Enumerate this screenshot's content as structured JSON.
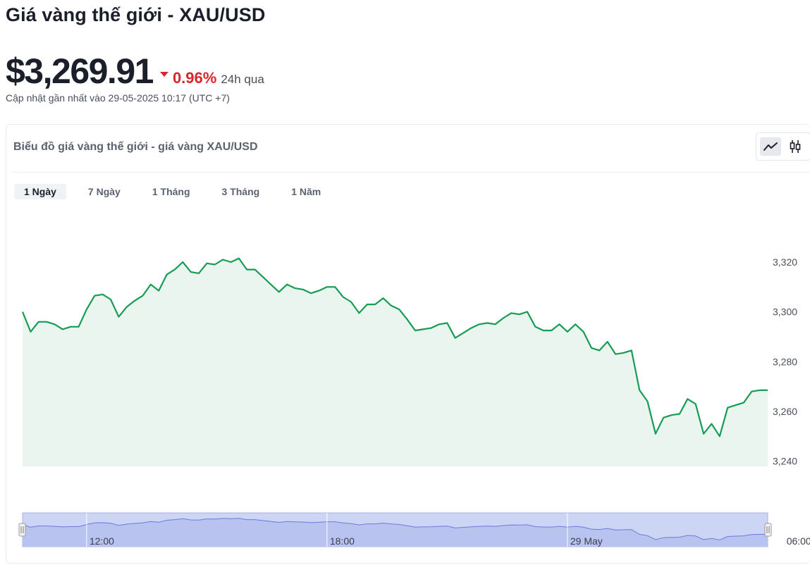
{
  "header": {
    "title": "Giá vàng thế giới - XAU/USD",
    "price": "$3,269.91",
    "change_pct": "0.96%",
    "change_period": "24h qua",
    "updated": "Cập nhật gần nhất vào 29-05-2025 10:17 (UTC +7)"
  },
  "card": {
    "title": "Biểu đồ giá vàng thế giới - giá vàng XAU/USD",
    "view_modes": [
      {
        "icon": "line-chart-icon",
        "active": true
      },
      {
        "icon": "candlestick-icon",
        "active": false
      }
    ],
    "ranges": [
      {
        "label": "1 Ngày",
        "active": true
      },
      {
        "label": "7 Ngày",
        "active": false
      },
      {
        "label": "1 Tháng",
        "active": false
      },
      {
        "label": "3 Tháng",
        "active": false
      },
      {
        "label": "1 Năm",
        "active": false
      }
    ]
  },
  "colors": {
    "line": "#169c54",
    "fill": "#eaf5ef",
    "negative": "#d9262e",
    "navigator_fill": "#cdd5f5",
    "navigator_line": "#6c7bd8"
  },
  "chart_data": {
    "type": "area",
    "title": "",
    "xlabel": "",
    "ylabel": "",
    "ylim": [
      3237,
      3330
    ],
    "yticks": [
      3240,
      3260,
      3280,
      3300,
      3320
    ],
    "ytick_labels": [
      "3,240",
      "3,260",
      "3,280",
      "3,300",
      "3,320"
    ],
    "grid": false,
    "navigator_ticks": [
      {
        "label": "12:00",
        "index": 8
      },
      {
        "label": "18:00",
        "index": 38
      },
      {
        "label": "29 May",
        "index": 68
      },
      {
        "label": "06:00",
        "index": 95
      }
    ],
    "series": [
      {
        "values": [
          3300,
          3292,
          3296,
          3296,
          3295,
          3293,
          3294,
          3294,
          3301,
          3306.5,
          3307,
          3305,
          3298,
          3302,
          3304.5,
          3306.5,
          3311,
          3308.5,
          3315,
          3317,
          3320,
          3316,
          3315.5,
          3319.5,
          3319,
          3321,
          3320,
          3321.5,
          3317,
          3317,
          3314,
          3311,
          3308,
          3311,
          3309.5,
          3309,
          3307.5,
          3308.5,
          3310,
          3310,
          3306,
          3304,
          3299.5,
          3303,
          3303,
          3305.5,
          3302.5,
          3301,
          3297,
          3292.5,
          3293,
          3293.5,
          3295,
          3295.5,
          3289.5,
          3291.5,
          3293.5,
          3295,
          3295.5,
          3295,
          3297.5,
          3299.5,
          3299,
          3300,
          3294,
          3292.5,
          3292.5,
          3295,
          3292,
          3295,
          3292,
          3285.5,
          3284.5,
          3288,
          3283,
          3283.5,
          3284.5,
          3268.5,
          3264,
          3251,
          3257.5,
          3258.5,
          3259,
          3265,
          3263,
          3251,
          3255,
          3250,
          3261.5,
          3262.5,
          3263.5,
          3268,
          3268.5,
          3268.5
        ]
      }
    ]
  }
}
